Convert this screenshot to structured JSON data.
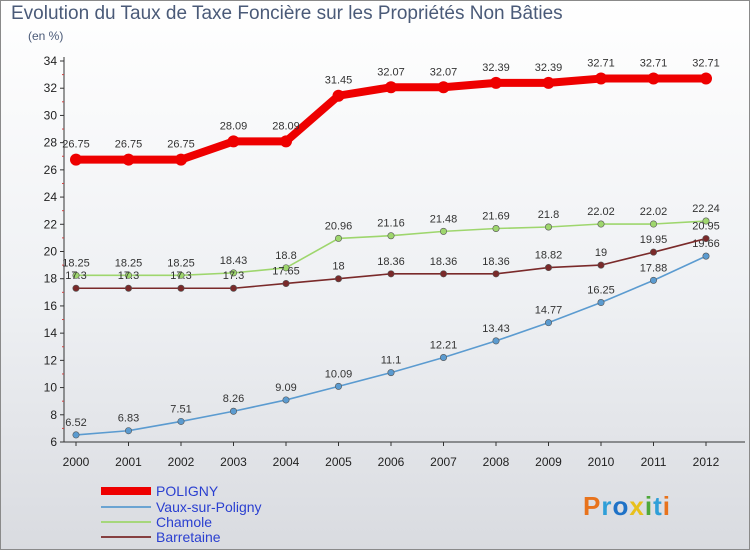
{
  "title": "Evolution du Taux de Taxe Foncière sur les Propriétés Non Bâties",
  "unit_label": "(en %)",
  "logo": {
    "text": "Proxiti",
    "colors": [
      "#e8731c",
      "#2f9fd8",
      "#1f72c7",
      "#e8c01c",
      "#4fa83a",
      "#2f9fd8",
      "#e8731c"
    ]
  },
  "chart_data": {
    "type": "line",
    "x": [
      "2000",
      "2001",
      "2002",
      "2003",
      "2004",
      "2005",
      "2006",
      "2007",
      "2008",
      "2009",
      "2010",
      "2011",
      "2012"
    ],
    "ylim": [
      6,
      34
    ],
    "yticks": [
      6,
      8,
      10,
      12,
      14,
      16,
      18,
      20,
      22,
      24,
      26,
      28,
      30,
      32,
      34
    ],
    "grid": false,
    "legend_position": "bottom-left",
    "series": [
      {
        "name": "POLIGNY",
        "color": "#ee0000",
        "values": [
          26.75,
          26.75,
          26.75,
          28.09,
          28.09,
          31.45,
          32.07,
          32.07,
          32.39,
          32.39,
          32.71,
          32.71,
          32.71
        ],
        "labels": [
          "26.75",
          "26.75",
          "26.75",
          "28.09",
          "28.09",
          "31.45",
          "32.07",
          "32.07",
          "32.39",
          "32.39",
          "32.71",
          "32.71",
          "32.71"
        ]
      },
      {
        "name": "Vaux-sur-Poligny",
        "color": "#5b9bd0",
        "values": [
          6.52,
          6.83,
          7.51,
          8.26,
          9.09,
          10.09,
          11.1,
          12.21,
          13.43,
          14.77,
          16.25,
          17.88,
          19.66
        ],
        "labels": [
          "6.52",
          "6.83",
          "7.51",
          "8.26",
          "9.09",
          "10.09",
          "11.1",
          "12.21",
          "13.43",
          "14.77",
          "16.25",
          "17.88",
          "19.66"
        ]
      },
      {
        "name": "Chamole",
        "color": "#9ed66d",
        "values": [
          18.25,
          18.25,
          18.25,
          18.43,
          18.8,
          20.96,
          21.16,
          21.48,
          21.69,
          21.8,
          22.02,
          22.02,
          22.24
        ],
        "labels": [
          "18.25",
          "18.25",
          "18.25",
          "18.43",
          "18.8",
          "20.96",
          "21.16",
          "21.48",
          "21.69",
          "21.8",
          "22.02",
          "22.02",
          "22.24"
        ]
      },
      {
        "name": "Barretaine",
        "color": "#7a2a2a",
        "values": [
          17.3,
          17.3,
          17.3,
          17.3,
          17.65,
          18,
          18.36,
          18.36,
          18.36,
          18.82,
          19,
          19.95,
          20.95
        ],
        "labels": [
          "17.3",
          "17.3",
          "17.3",
          "17.3",
          "17.65",
          "18",
          "18.36",
          "18.36",
          "18.36",
          "18.82",
          "19",
          "19.95",
          "20.95"
        ]
      }
    ]
  }
}
